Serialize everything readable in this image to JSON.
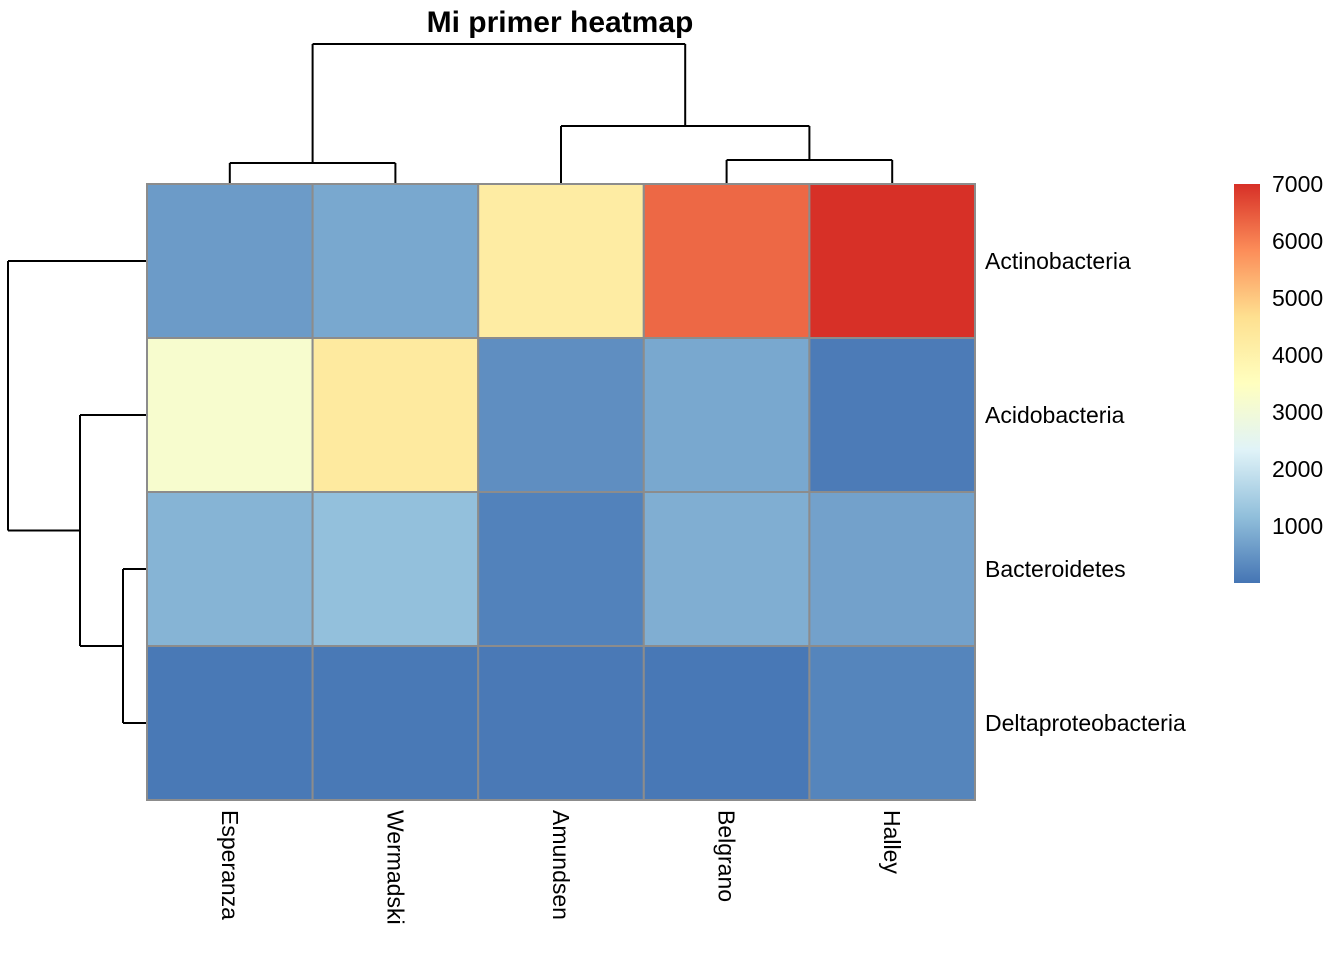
{
  "chart_data": {
    "type": "heatmap",
    "title": "Mi primer heatmap",
    "columns": [
      "Esperanza",
      "Wermadski",
      "Amundsen",
      "Belgrano",
      "Halley"
    ],
    "rows": [
      "Actinobacteria",
      "Acidobacteria",
      "Bacteroidetes",
      "Deltaproteobacteria"
    ],
    "values": [
      [
        600,
        800,
        4200,
        6300,
        7000
      ],
      [
        3200,
        4300,
        400,
        800,
        100
      ],
      [
        1000,
        1200,
        200,
        900,
        700
      ],
      [
        60,
        60,
        70,
        50,
        250
      ]
    ],
    "color_scale": {
      "min": 0,
      "max": 7000,
      "ticks": [
        1000,
        2000,
        3000,
        4000,
        5000,
        6000,
        7000
      ],
      "palette": [
        "#4575B4",
        "#91BFDB",
        "#E0F3F8",
        "#FFFFBF",
        "#FEE090",
        "#FC8D59",
        "#D73027"
      ]
    },
    "grid": false,
    "legend": "right",
    "column_dendrogram": true,
    "row_dendrogram": true
  }
}
